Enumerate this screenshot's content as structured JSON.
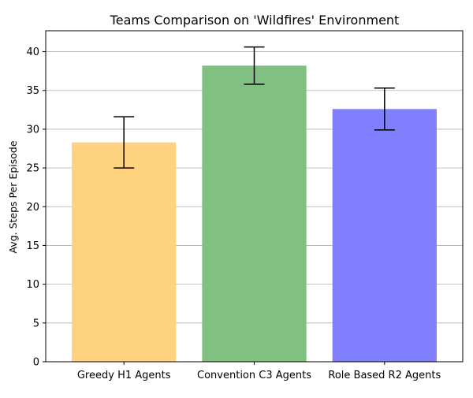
{
  "chart_data": {
    "type": "bar",
    "title": "Teams Comparison on 'Wildfires' Environment",
    "xlabel": "",
    "ylabel": "Avg. Steps Per Episode",
    "categories": [
      "Greedy H1 Agents",
      "Convention C3 Agents",
      "Role Based R2 Agents"
    ],
    "values": [
      28.3,
      38.2,
      32.6
    ],
    "error_low": [
      25.0,
      35.8,
      29.9
    ],
    "error_high": [
      31.6,
      40.6,
      35.3
    ],
    "colors": [
      "#ffd280",
      "#80c080",
      "#8080ff"
    ],
    "ylim": [
      0,
      42.7
    ],
    "yticks": [
      0,
      5,
      10,
      15,
      20,
      25,
      30,
      35,
      40
    ],
    "grid": "horizontal",
    "legend": "none"
  }
}
